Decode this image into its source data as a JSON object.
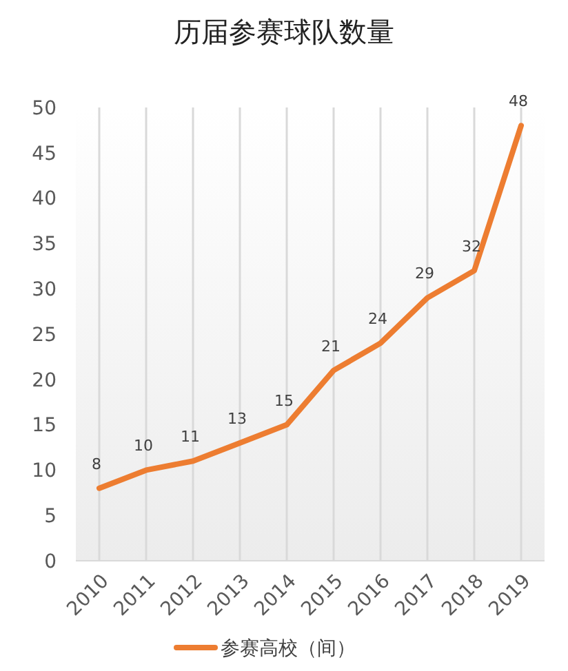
{
  "chart_data": {
    "type": "line",
    "title": "历届参赛球队数量",
    "categories": [
      "2010",
      "2011",
      "2012",
      "2013",
      "2014",
      "2015",
      "2016",
      "2017",
      "2018",
      "2019"
    ],
    "series": [
      {
        "name": "参赛高校（间）",
        "color": "#ed7d31",
        "values": [
          8,
          10,
          11,
          13,
          15,
          21,
          24,
          29,
          32,
          48
        ]
      }
    ],
    "ylim": [
      0,
      50
    ],
    "yticks": [
      0,
      5,
      10,
      15,
      20,
      25,
      30,
      35,
      40,
      45,
      50
    ],
    "grid": "x",
    "legend": "bottom",
    "data_labels": true,
    "marker": "none",
    "line_style": "solid"
  }
}
